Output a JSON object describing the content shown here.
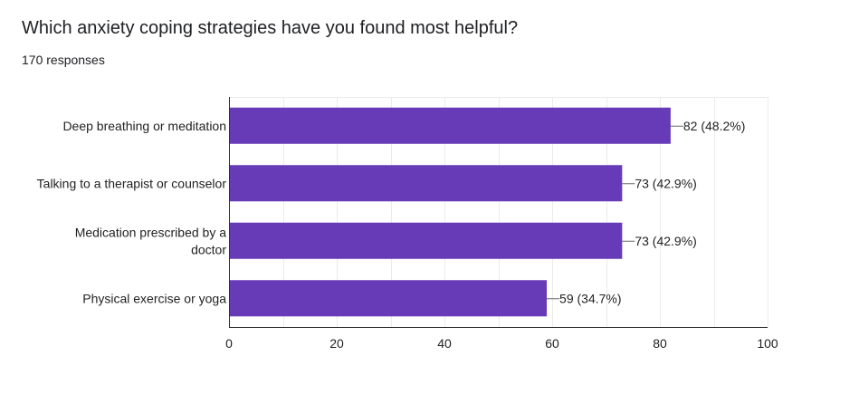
{
  "question": {
    "title": "Which anxiety coping strategies have you found most helpful?",
    "responses_label": "170 responses"
  },
  "colors": {
    "bar": "#673ab7",
    "grid": "#ebebeb",
    "axis": "#333333",
    "text": "#222222"
  },
  "chart_data": {
    "type": "bar",
    "orientation": "horizontal",
    "categories": [
      [
        "Deep breathing or meditation"
      ],
      [
        "Talking to a therapist or counselor"
      ],
      [
        "Medication prescribed by a",
        "doctor"
      ],
      [
        "Physical exercise or yoga"
      ]
    ],
    "values": [
      82,
      73,
      73,
      59
    ],
    "data_labels": [
      "82 (48.2%)",
      "73 (42.9%)",
      "73 (42.9%)",
      "59 (34.7%)"
    ],
    "xlim": [
      0,
      100
    ],
    "x_ticks": [
      0,
      20,
      40,
      60,
      80,
      100
    ],
    "grid": true,
    "legend": "none"
  }
}
